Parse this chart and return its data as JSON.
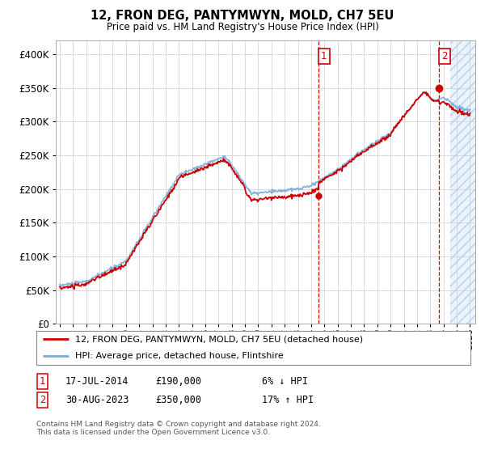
{
  "title": "12, FRON DEG, PANTYMWYN, MOLD, CH7 5EU",
  "subtitle": "Price paid vs. HM Land Registry's House Price Index (HPI)",
  "ylim": [
    0,
    420000
  ],
  "yticks": [
    0,
    50000,
    100000,
    150000,
    200000,
    250000,
    300000,
    350000,
    400000
  ],
  "x_start_year": 1995,
  "x_end_year": 2026,
  "transaction1_date": 2014.54,
  "transaction1_price": 190000,
  "transaction1_label": "1",
  "transaction2_date": 2023.66,
  "transaction2_price": 350000,
  "transaction2_label": "2",
  "legend_line1": "12, FRON DEG, PANTYMWYN, MOLD, CH7 5EU (detached house)",
  "legend_line2": "HPI: Average price, detached house, Flintshire",
  "annotation1_date": "17-JUL-2014",
  "annotation1_price": "£190,000",
  "annotation1_pct": "6% ↓ HPI",
  "annotation2_date": "30-AUG-2023",
  "annotation2_price": "£350,000",
  "annotation2_pct": "17% ↑ HPI",
  "footnote": "Contains HM Land Registry data © Crown copyright and database right 2024.\nThis data is licensed under the Open Government Licence v3.0.",
  "hpi_color": "#7aacdc",
  "price_color": "#cc0000",
  "shade_color": "#ddeeff",
  "bg_color": "#ffffff",
  "grid_color": "#cccccc"
}
